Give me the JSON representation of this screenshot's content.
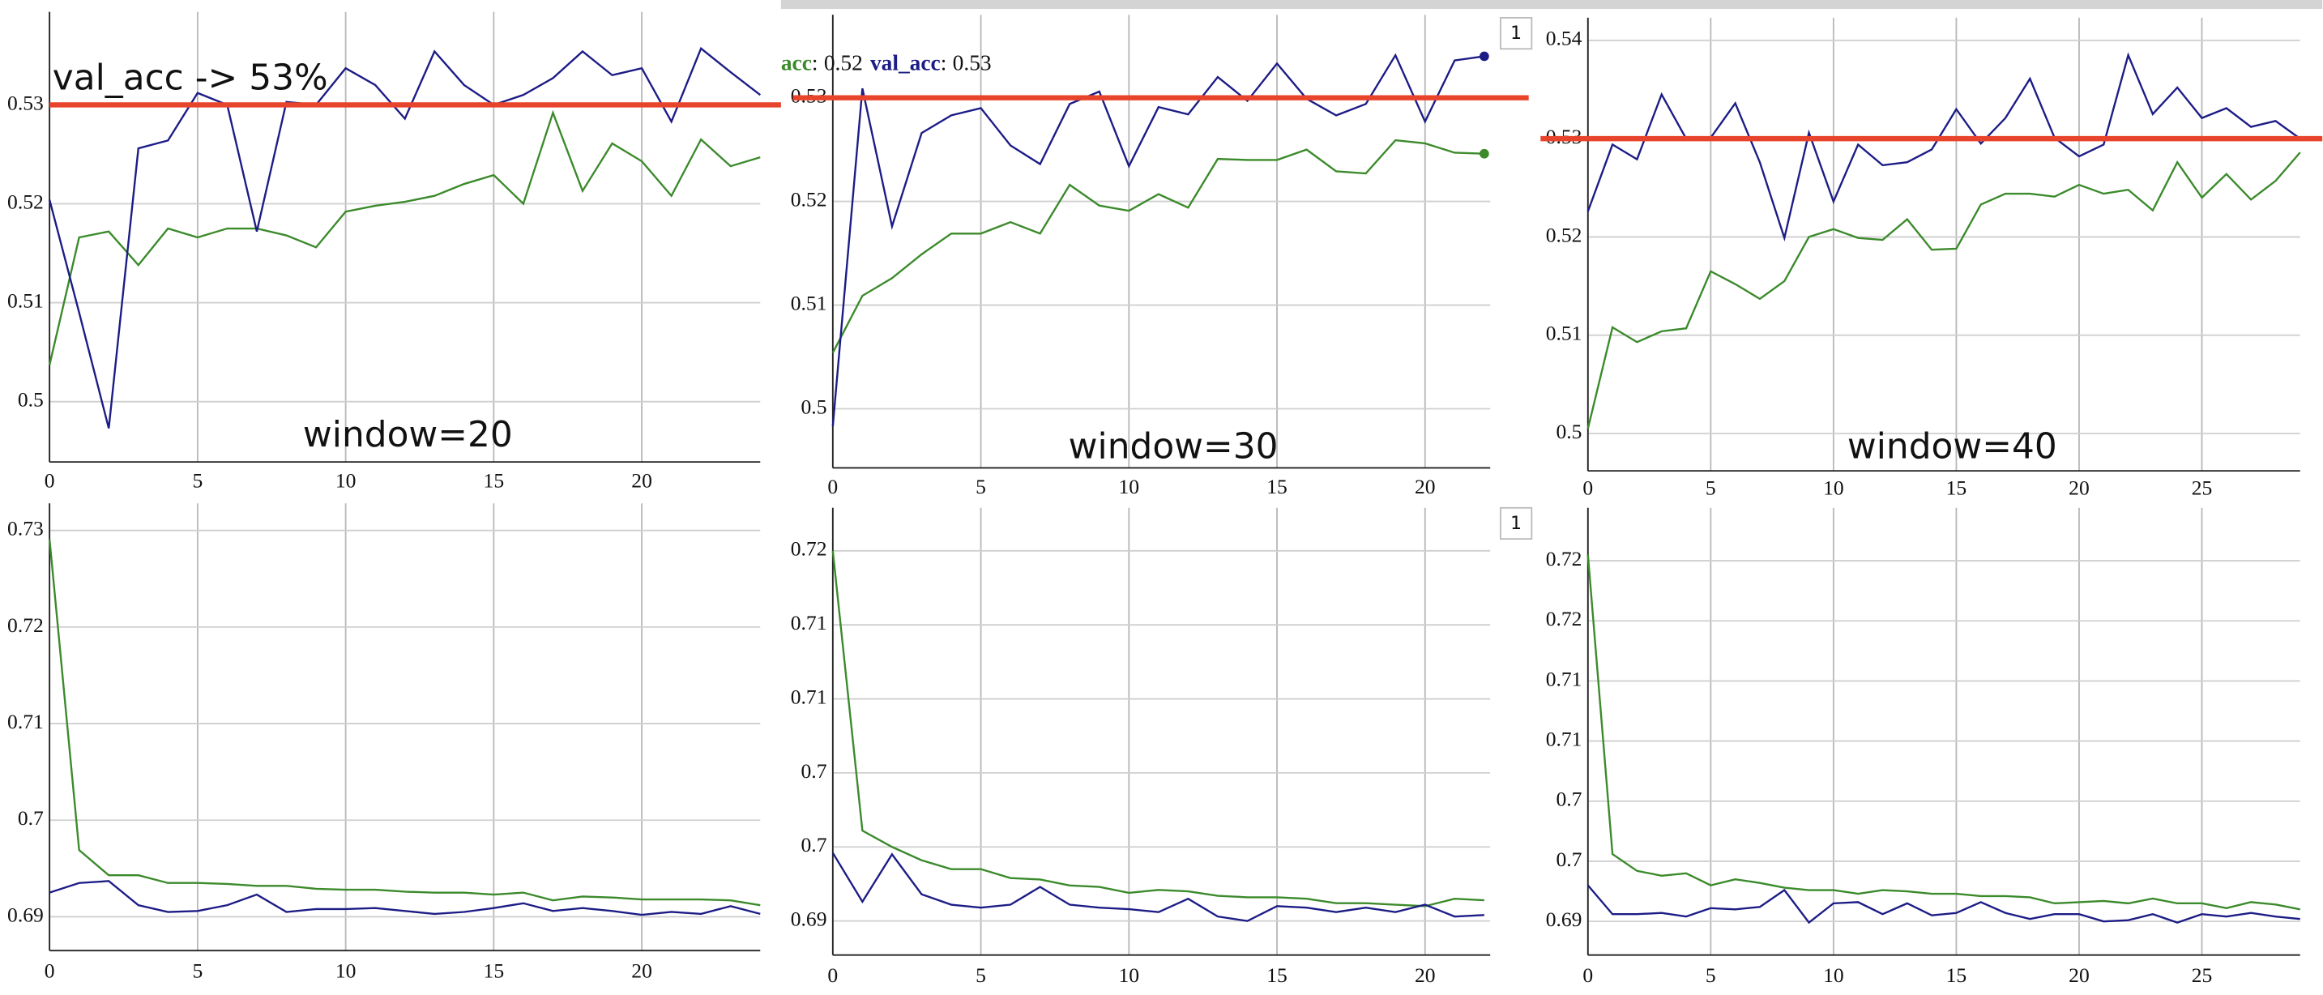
{
  "chart_data": [
    {
      "type": "line",
      "x": [
        0,
        1,
        2,
        3,
        4,
        5,
        6,
        7,
        8,
        9,
        10,
        11,
        12,
        13,
        14,
        15,
        16,
        17,
        18,
        19,
        20,
        21,
        22,
        23,
        24
      ],
      "xlim": [
        0,
        24
      ],
      "xticks": [
        0,
        5,
        10,
        15,
        20
      ],
      "ylim": [
        0.4939,
        0.5394
      ],
      "yticks": [
        0.5,
        0.51,
        0.52,
        0.53
      ],
      "grid": true,
      "series": [
        {
          "color": "#3b8a2b",
          "values": [
            0.5037,
            0.5166,
            0.5172,
            0.5138,
            0.5175,
            0.5166,
            0.5175,
            0.5175,
            0.5168,
            0.5156,
            0.5192,
            0.5198,
            0.5202,
            0.5208,
            0.522,
            0.5229,
            0.52,
            0.5292,
            0.5213,
            0.5261,
            0.5243,
            0.5208,
            0.5265,
            0.5238,
            0.5247
          ]
        },
        {
          "color": "#1c1c86",
          "values": [
            0.5204,
            0.509,
            0.4973,
            0.5256,
            0.5264,
            0.5312,
            0.53,
            0.5172,
            0.5303,
            0.53,
            0.5337,
            0.532,
            0.5286,
            0.5354,
            0.532,
            0.53,
            0.531,
            0.5327,
            0.5354,
            0.533,
            0.5337,
            0.5283,
            0.5357,
            0.5333,
            0.531
          ]
        }
      ],
      "hline": {
        "value": 0.53,
        "color": "#e8442c"
      },
      "note": "val_acc -> 53%",
      "caption": "window=20"
    },
    {
      "type": "line",
      "x": [
        0,
        1,
        2,
        3,
        4,
        5,
        6,
        7,
        8,
        9,
        10,
        11,
        12,
        13,
        14,
        15,
        16,
        17,
        18,
        19,
        20,
        21,
        22
      ],
      "xlim": [
        0,
        22.2
      ],
      "xticks": [
        0,
        5,
        10,
        15,
        20
      ],
      "ylim": [
        0.4943,
        0.538
      ],
      "yticks": [
        0.5,
        0.51,
        0.52,
        0.53
      ],
      "grid": true,
      "series": [
        {
          "name": "acc",
          "color": "#3b8a2b",
          "values": [
            0.5054,
            0.5109,
            0.5126,
            0.5149,
            0.5169,
            0.5169,
            0.518,
            0.5169,
            0.5216,
            0.5196,
            0.5191,
            0.5207,
            0.5194,
            0.5241,
            0.524,
            0.524,
            0.525,
            0.5229,
            0.5227,
            0.5259,
            0.5256,
            0.5247,
            0.5246
          ],
          "value_labels": [
            null,
            null,
            null,
            null,
            null,
            null,
            null,
            null,
            null,
            null,
            null,
            null,
            null,
            null,
            null,
            null,
            null,
            null,
            null,
            null,
            null,
            null,
            "0.52"
          ]
        },
        {
          "name": "val_acc",
          "color": "#1c1c86",
          "values": [
            0.4983,
            0.5309,
            0.5176,
            0.5266,
            0.5283,
            0.529,
            0.5254,
            0.5236,
            0.5294,
            0.5306,
            0.5234,
            0.5291,
            0.5284,
            0.532,
            0.5297,
            0.5333,
            0.5299,
            0.5283,
            0.5294,
            0.5341,
            0.5277,
            0.5336,
            0.534
          ],
          "value_labels": [
            null,
            null,
            null,
            null,
            null,
            null,
            null,
            null,
            null,
            null,
            null,
            null,
            null,
            null,
            null,
            null,
            null,
            null,
            null,
            null,
            null,
            null,
            "0.53"
          ]
        }
      ],
      "legend_separator": ":",
      "hline": {
        "value": 0.53,
        "color": "#e8442c"
      },
      "caption": "window=30"
    },
    {
      "type": "line",
      "x": [
        0,
        1,
        2,
        3,
        4,
        5,
        6,
        7,
        8,
        9,
        10,
        11,
        12,
        13,
        14,
        15,
        16,
        17,
        18,
        19,
        20,
        21,
        22,
        23,
        24,
        25,
        26,
        27,
        28,
        29
      ],
      "xlim": [
        0,
        29
      ],
      "xticks": [
        0,
        5,
        10,
        15,
        20,
        25
      ],
      "ylim": [
        0.4962,
        0.5423
      ],
      "yticks": [
        0.5,
        0.51,
        0.52,
        0.53,
        0.54
      ],
      "grid": true,
      "series": [
        {
          "color": "#3b8a2b",
          "values": [
            0.5005,
            0.5108,
            0.5093,
            0.5104,
            0.5107,
            0.5165,
            0.5152,
            0.5137,
            0.5155,
            0.52,
            0.5208,
            0.5199,
            0.5197,
            0.5218,
            0.5187,
            0.5188,
            0.5233,
            0.5244,
            0.5244,
            0.5241,
            0.5253,
            0.5244,
            0.5248,
            0.5227,
            0.5276,
            0.524,
            0.5264,
            0.5238,
            0.5257,
            0.5286
          ]
        },
        {
          "color": "#1c1c86",
          "values": [
            0.5226,
            0.5294,
            0.5279,
            0.5345,
            0.53,
            0.5301,
            0.5336,
            0.5276,
            0.5199,
            0.5306,
            0.5236,
            0.5294,
            0.5273,
            0.5276,
            0.5289,
            0.533,
            0.5295,
            0.5321,
            0.5361,
            0.5301,
            0.5282,
            0.5294,
            0.5385,
            0.5325,
            0.5352,
            0.5321,
            0.5331,
            0.5312,
            0.5318,
            0.53
          ]
        }
      ],
      "hline": {
        "value": 0.53,
        "color": "#e8442c"
      },
      "caption": "window=40",
      "badge": "1"
    },
    {
      "type": "line",
      "x": [
        0,
        1,
        2,
        3,
        4,
        5,
        6,
        7,
        8,
        9,
        10,
        11,
        12,
        13,
        14,
        15,
        16,
        17,
        18,
        19,
        20,
        21,
        22,
        23,
        24
      ],
      "xlim": [
        0,
        24
      ],
      "xticks": [
        0,
        5,
        10,
        15,
        20
      ],
      "ylim": [
        0.6865,
        0.7328
      ],
      "yticks": [
        0.69,
        0.7,
        0.71,
        0.72,
        0.73
      ],
      "grid": true,
      "series": [
        {
          "color": "#3b8a2b",
          "values": [
            0.7291,
            0.6969,
            0.6943,
            0.6943,
            0.6935,
            0.6935,
            0.6934,
            0.6932,
            0.6932,
            0.6929,
            0.6928,
            0.6928,
            0.6926,
            0.6925,
            0.6925,
            0.6923,
            0.6925,
            0.6917,
            0.6921,
            0.692,
            0.6918,
            0.6918,
            0.6918,
            0.6917,
            0.6912
          ]
        },
        {
          "color": "#1c1c86",
          "values": [
            0.6925,
            0.6935,
            0.6937,
            0.6912,
            0.6905,
            0.6906,
            0.6912,
            0.6923,
            0.6905,
            0.6908,
            0.6908,
            0.6909,
            0.6906,
            0.6903,
            0.6905,
            0.6909,
            0.6914,
            0.6906,
            0.6909,
            0.6906,
            0.6902,
            0.6905,
            0.6903,
            0.6911,
            0.6903
          ]
        }
      ]
    },
    {
      "type": "line",
      "x": [
        0,
        1,
        2,
        3,
        4,
        5,
        6,
        7,
        8,
        9,
        10,
        11,
        12,
        13,
        14,
        15,
        16,
        17,
        18,
        19,
        20,
        21,
        22
      ],
      "xlim": [
        0,
        22.2
      ],
      "xticks": [
        0,
        5,
        10,
        15,
        20
      ],
      "ylim": [
        0.6877,
        0.7179
      ],
      "yticks": [
        0.69,
        {
          "value": 0.695,
          "label": "0.7"
        },
        0.7,
        {
          "value": 0.705,
          "label": "0.71"
        },
        0.71,
        {
          "value": 0.715,
          "label": "0.72"
        }
      ],
      "grid": true,
      "series": [
        {
          "color": "#3b8a2b",
          "values": [
            0.715,
            0.6961,
            0.695,
            0.6941,
            0.6935,
            0.6935,
            0.6929,
            0.6928,
            0.6924,
            0.6923,
            0.6919,
            0.6921,
            0.692,
            0.6917,
            0.6916,
            0.6916,
            0.6915,
            0.6912,
            0.6912,
            0.6911,
            0.691,
            0.6915,
            0.6914
          ]
        },
        {
          "color": "#1c1c86",
          "values": [
            0.6946,
            0.6913,
            0.6945,
            0.6918,
            0.6911,
            0.6909,
            0.6911,
            0.6923,
            0.6911,
            0.6909,
            0.6908,
            0.6906,
            0.6915,
            0.6903,
            0.69,
            0.691,
            0.6909,
            0.6906,
            0.6909,
            0.6906,
            0.6911,
            0.6903,
            0.6904
          ]
        }
      ]
    },
    {
      "type": "line",
      "x": [
        0,
        1,
        2,
        3,
        4,
        5,
        6,
        7,
        8,
        9,
        10,
        11,
        12,
        13,
        14,
        15,
        16,
        17,
        18,
        19,
        20,
        21,
        22,
        23,
        24,
        25,
        26,
        27,
        28,
        29
      ],
      "xlim": [
        0,
        29
      ],
      "xticks": [
        0,
        5,
        10,
        15,
        20,
        25
      ],
      "ylim": [
        0.6872,
        0.7244
      ],
      "yticks": [
        0.69,
        {
          "value": 0.695,
          "label": "0.7"
        },
        0.7,
        {
          "value": 0.705,
          "label": "0.71"
        },
        0.71,
        {
          "value": 0.715,
          "label": "0.72"
        },
        0.72
      ],
      "grid": true,
      "series": [
        {
          "color": "#3b8a2b",
          "values": [
            0.7205,
            0.6956,
            0.6942,
            0.6938,
            0.694,
            0.693,
            0.6935,
            0.6932,
            0.6928,
            0.6926,
            0.6926,
            0.6923,
            0.6926,
            0.6925,
            0.6923,
            0.6923,
            0.6921,
            0.6921,
            0.692,
            0.6915,
            0.6916,
            0.6917,
            0.6915,
            0.6919,
            0.6915,
            0.6915,
            0.6911,
            0.6916,
            0.6914,
            0.691
          ]
        },
        {
          "color": "#1c1c86",
          "values": [
            0.693,
            0.6906,
            0.6906,
            0.6907,
            0.6904,
            0.6911,
            0.691,
            0.6912,
            0.6926,
            0.6899,
            0.6915,
            0.6916,
            0.6906,
            0.6915,
            0.6905,
            0.6907,
            0.6916,
            0.6907,
            0.6902,
            0.6906,
            0.6906,
            0.69,
            0.6901,
            0.6906,
            0.6899,
            0.6906,
            0.6904,
            0.6907,
            0.6904,
            0.6902
          ]
        }
      ],
      "badge": "1"
    }
  ]
}
